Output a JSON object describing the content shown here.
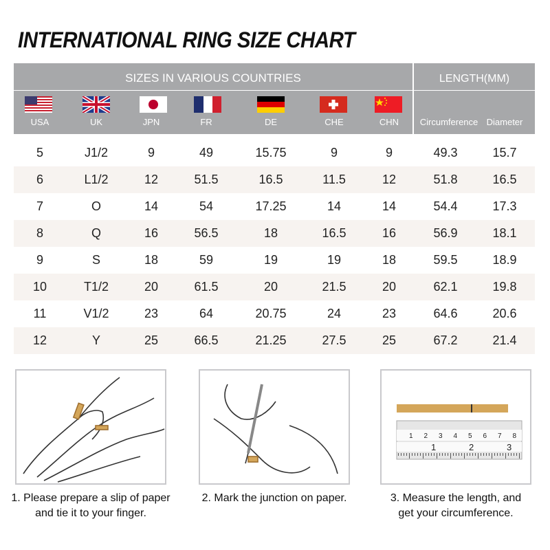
{
  "title": "INTERNATIONAL RING SIZE CHART",
  "header": {
    "sizes_label": "SIZES IN VARIOUS COUNTRIES",
    "length_label": "LENGTH(MM)",
    "countries": [
      "USA",
      "UK",
      "JPN",
      "FR",
      "DE",
      "CHE",
      "CHN"
    ],
    "length_columns": [
      "Circumference",
      "Diameter"
    ]
  },
  "rows": [
    [
      "5",
      "J1/2",
      "9",
      "49",
      "15.75",
      "9",
      "9",
      "49.3",
      "15.7"
    ],
    [
      "6",
      "L1/2",
      "12",
      "51.5",
      "16.5",
      "11.5",
      "12",
      "51.8",
      "16.5"
    ],
    [
      "7",
      "O",
      "14",
      "54",
      "17.25",
      "14",
      "14",
      "54.4",
      "17.3"
    ],
    [
      "8",
      "Q",
      "16",
      "56.5",
      "18",
      "16.5",
      "16",
      "56.9",
      "18.1"
    ],
    [
      "9",
      "S",
      "18",
      "59",
      "19",
      "19",
      "18",
      "59.5",
      "18.9"
    ],
    [
      "10",
      "T1/2",
      "20",
      "61.5",
      "20",
      "21.5",
      "20",
      "62.1",
      "19.8"
    ],
    [
      "11",
      "V1/2",
      "23",
      "64",
      "20.75",
      "24",
      "23",
      "64.6",
      "20.6"
    ],
    [
      "12",
      "Y",
      "25",
      "66.5",
      "21.25",
      "27.5",
      "25",
      "67.2",
      "21.4"
    ]
  ],
  "steps": [
    {
      "line1": "1. Please prepare a slip of paper",
      "line2": "and tie it to your finger."
    },
    {
      "line1": "2. Mark the junction on paper.",
      "line2": ""
    },
    {
      "line1": "3. Measure the length, and",
      "line2": "get your circumference."
    }
  ],
  "ruler": {
    "cm_marks": [
      "1",
      "2",
      "3",
      "4",
      "5",
      "6",
      "7",
      "8"
    ],
    "inch_marks": [
      "1",
      "2",
      "3"
    ]
  },
  "colors": {
    "header_bg": "#a7a8aa",
    "row_alt": "#f7f3f0",
    "paper_strip": "#d4a65a"
  }
}
